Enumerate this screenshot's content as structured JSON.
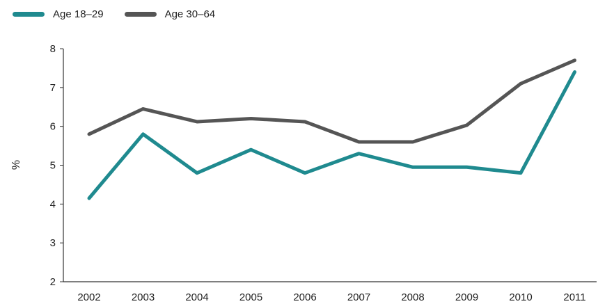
{
  "chart_data": {
    "type": "line",
    "title": "",
    "xlabel": "",
    "ylabel": "%",
    "categories": [
      "2002",
      "2003",
      "2004",
      "2005",
      "2006",
      "2007",
      "2008",
      "2009",
      "2010",
      "2011"
    ],
    "ylim": [
      2,
      8
    ],
    "yticks": [
      "2",
      "3",
      "4",
      "5",
      "6",
      "7",
      "8"
    ],
    "grid": false,
    "legend_position": "top-left",
    "series": [
      {
        "name": "Age 18–29",
        "color": "#1f8a8f",
        "values": [
          4.15,
          5.8,
          4.8,
          5.4,
          4.8,
          5.3,
          4.95,
          4.95,
          4.8,
          7.4
        ]
      },
      {
        "name": "Age 30–64",
        "color": "#555555",
        "values": [
          5.8,
          6.45,
          6.12,
          6.2,
          6.12,
          5.6,
          5.6,
          6.03,
          7.1,
          7.7
        ]
      }
    ]
  }
}
